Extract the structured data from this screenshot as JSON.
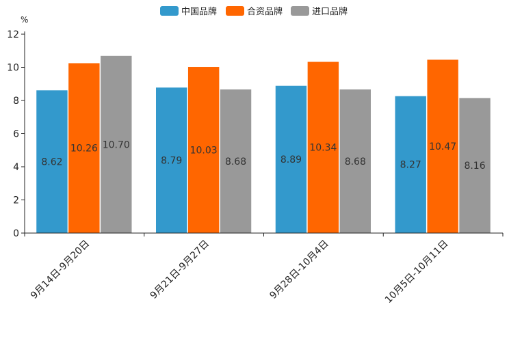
{
  "chart_data": {
    "type": "bar",
    "title": "",
    "xlabel": "",
    "ylabel": "%",
    "ylim": [
      0,
      12
    ],
    "yticks": [
      0,
      2,
      4,
      6,
      8,
      10,
      12
    ],
    "grid": false,
    "legend_position": "top-center",
    "categories": [
      "9月14日-9月20日",
      "9月21日-9月27日",
      "9月28日-10月4日",
      "10月5日-10月11日"
    ],
    "series": [
      {
        "name": "中国品牌",
        "color": "#3399cc",
        "values": [
          8.62,
          8.79,
          8.89,
          8.27
        ]
      },
      {
        "name": "合资品牌",
        "color": "#ff6600",
        "values": [
          10.26,
          10.03,
          10.34,
          10.47
        ]
      },
      {
        "name": "进口品牌",
        "color": "#999999",
        "values": [
          10.7,
          8.68,
          8.68,
          8.16
        ]
      }
    ]
  }
}
